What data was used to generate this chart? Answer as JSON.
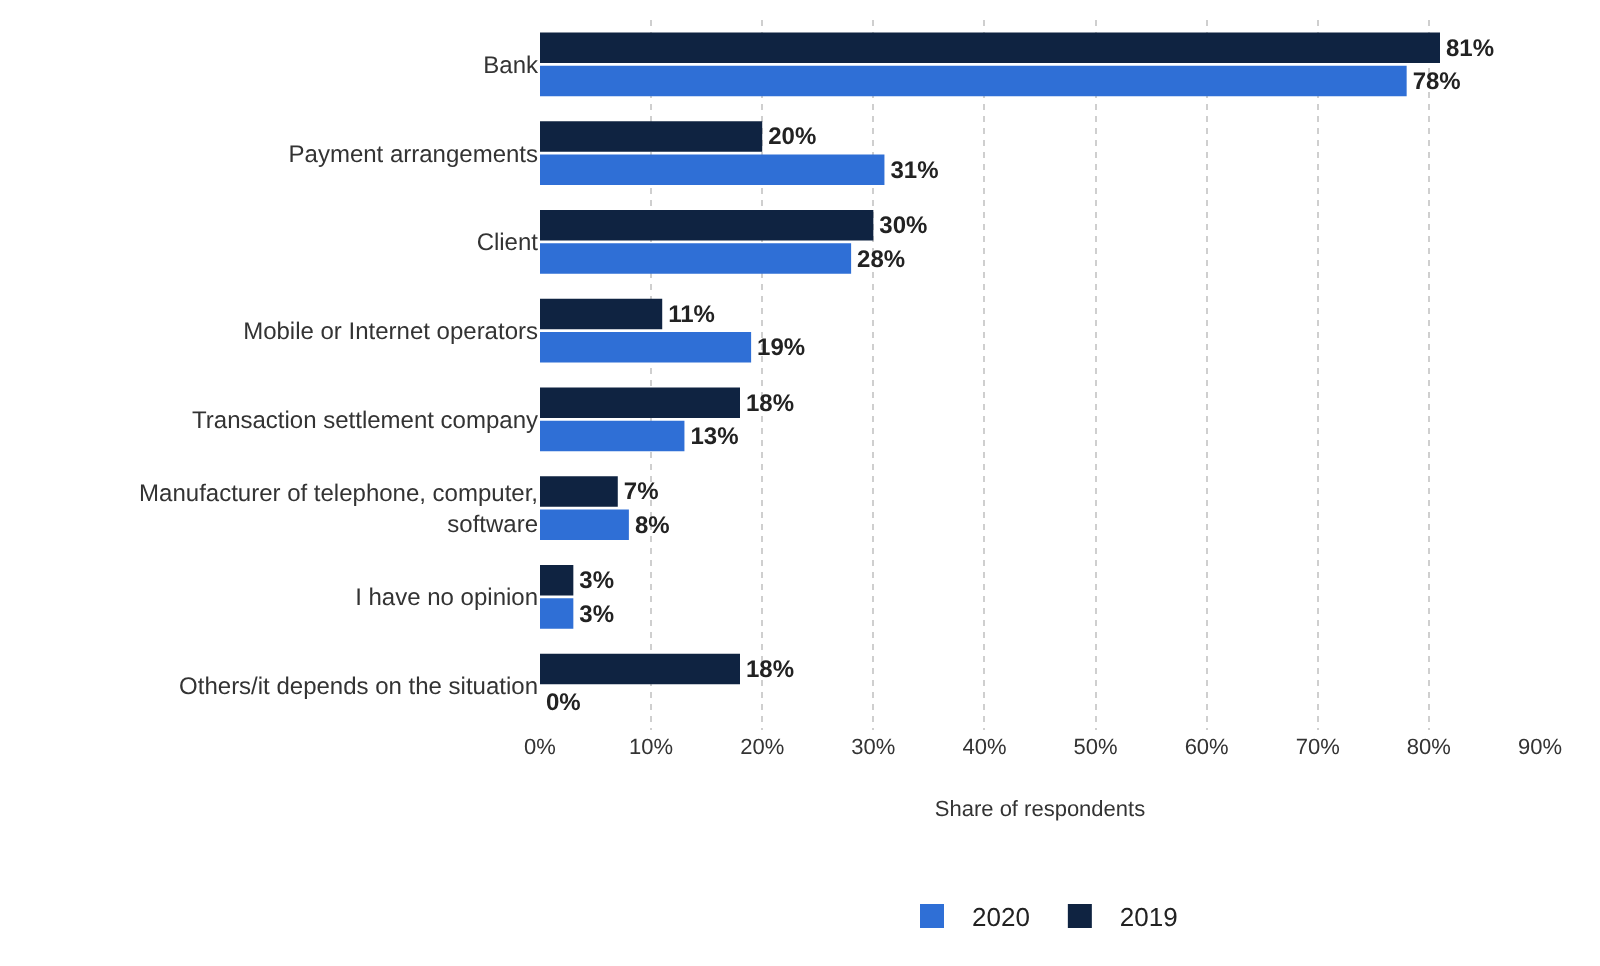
{
  "chart_data": {
    "type": "bar",
    "orientation": "horizontal",
    "xlabel": "Share of respondents",
    "categories": [
      "Bank",
      "Payment arrangements",
      "Client",
      "Mobile or Internet operators",
      "Transaction settlement company",
      "Manufacturer of telephone, computer, software",
      "I have no opinion",
      "Others/it depends on the situation"
    ],
    "series": [
      {
        "name": "2020",
        "color": "#2f6fd6",
        "values": [
          78,
          31,
          28,
          19,
          13,
          8,
          3,
          0
        ],
        "value_labels": [
          "78%",
          "31%",
          "28%",
          "19%",
          "13%",
          "8%",
          "3%",
          "0%"
        ]
      },
      {
        "name": "2019",
        "color": "#0f2341",
        "values": [
          81,
          20,
          30,
          11,
          18,
          7,
          3,
          18
        ],
        "value_labels": [
          "81%",
          "20%",
          "30%",
          "11%",
          "18%",
          "7%",
          "3%",
          "18%"
        ]
      }
    ],
    "xlim": [
      0,
      90
    ],
    "xticks": [
      {
        "value": 0,
        "label": "0%"
      },
      {
        "value": 10,
        "label": "10%"
      },
      {
        "value": 20,
        "label": "20%"
      },
      {
        "value": 30,
        "label": "30%"
      },
      {
        "value": 40,
        "label": "40%"
      },
      {
        "value": 50,
        "label": "50%"
      },
      {
        "value": 60,
        "label": "60%"
      },
      {
        "value": 70,
        "label": "70%"
      },
      {
        "value": 80,
        "label": "80%"
      },
      {
        "value": 90,
        "label": "90%"
      }
    ],
    "grid": "x",
    "legend": "bottom"
  }
}
